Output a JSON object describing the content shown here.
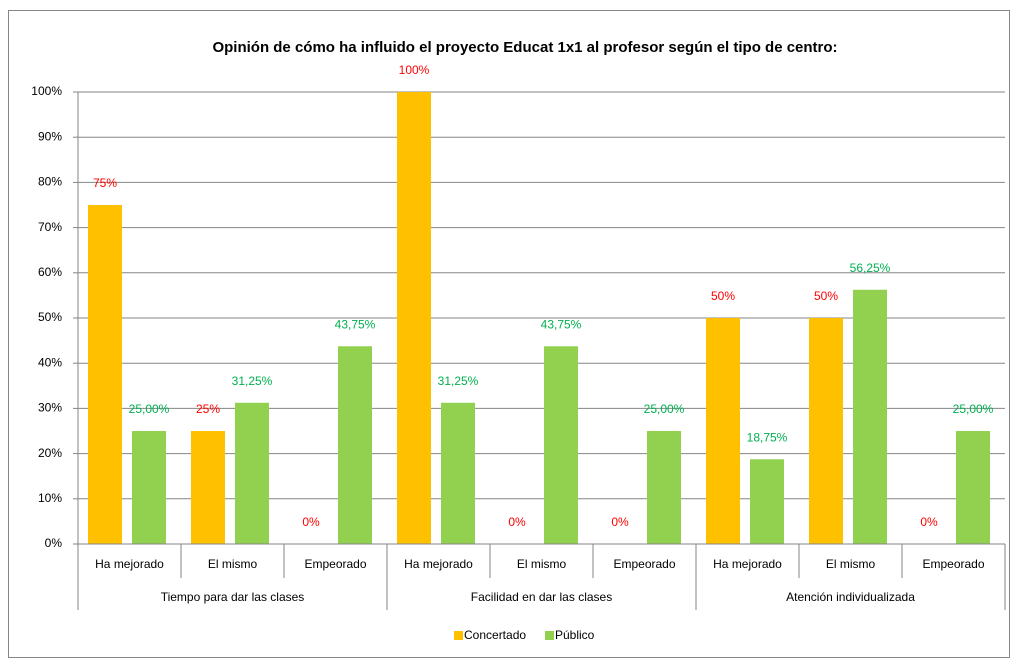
{
  "chart_data": {
    "type": "bar",
    "title": "Opinión de cómo ha influido el proyecto Educat 1x1 al profesor según el tipo de centro:",
    "categories": [
      "Ha mejorado",
      "El mismo",
      "Empeorado",
      "Ha mejorado",
      "El mismo",
      "Empeorado",
      "Ha mejorado",
      "El mismo",
      "Empeorado"
    ],
    "category_groups": [
      "Tiempo para dar las clases",
      "Facilidad en dar las clases",
      "Atención individualizada"
    ],
    "series": [
      {
        "name": "Concertado",
        "color": "#ffc000",
        "label_color": "#ff0000",
        "values": [
          75,
          25,
          0,
          100,
          0,
          0,
          50,
          50,
          0
        ],
        "value_labels": [
          "75%",
          "25%",
          "0%",
          "100%",
          "0%",
          "0%",
          "50%",
          "50%",
          "0%"
        ]
      },
      {
        "name": "Público",
        "color": "#92d050",
        "label_color": "#00b050",
        "values": [
          25,
          31.25,
          43.75,
          31.25,
          43.75,
          25,
          18.75,
          56.25,
          25
        ],
        "value_labels": [
          "25,00%",
          "31,25%",
          "43,75%",
          "31,25%",
          "43,75%",
          "25,00%",
          "18,75%",
          "56,25%",
          "25,00%"
        ]
      }
    ],
    "ylim": [
      0,
      100
    ],
    "yticks": [
      {
        "value": 0,
        "label": "0%"
      },
      {
        "value": 10,
        "label": "10%"
      },
      {
        "value": 20,
        "label": "20%"
      },
      {
        "value": 30,
        "label": "30%"
      },
      {
        "value": 40,
        "label": "40%"
      },
      {
        "value": 50,
        "label": "50%"
      },
      {
        "value": 60,
        "label": "60%"
      },
      {
        "value": 70,
        "label": "70%"
      },
      {
        "value": 80,
        "label": "80%"
      },
      {
        "value": 90,
        "label": "90%"
      },
      {
        "value": 100,
        "label": "100%"
      }
    ],
    "grid": true,
    "legend": "bottom"
  }
}
